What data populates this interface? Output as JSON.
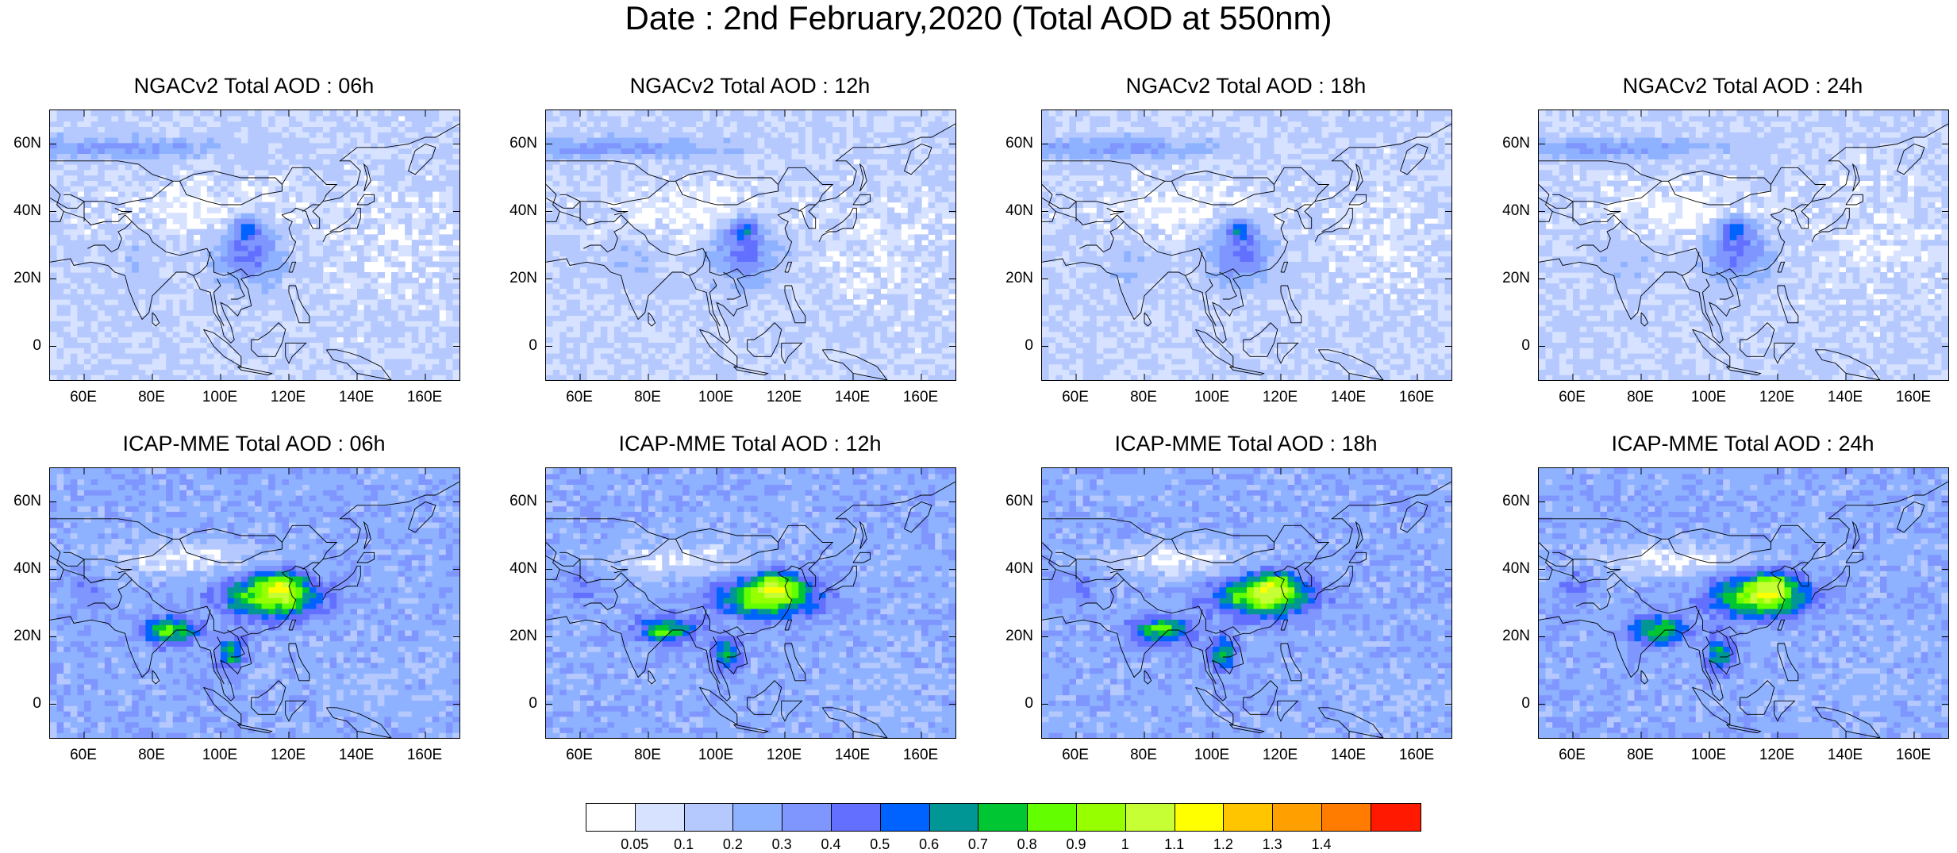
{
  "title": "Date : 2nd February,2020 (Total AOD at 550nm)",
  "panels": [
    {
      "title": "NGACv2 Total AOD : 06h",
      "model": "ngac"
    },
    {
      "title": "NGACv2 Total AOD : 12h",
      "model": "ngac"
    },
    {
      "title": "NGACv2 Total AOD : 18h",
      "model": "ngac"
    },
    {
      "title": "NGACv2 Total AOD : 24h",
      "model": "ngac"
    },
    {
      "title": "ICAP-MME Total AOD : 06h",
      "model": "icap"
    },
    {
      "title": "ICAP-MME Total AOD : 12h",
      "model": "icap"
    },
    {
      "title": "ICAP-MME Total AOD : 18h",
      "model": "icap"
    },
    {
      "title": "ICAP-MME Total AOD : 24h",
      "model": "icap"
    }
  ],
  "map": {
    "lon_range": [
      50,
      170
    ],
    "lat_range": [
      -10,
      70
    ],
    "lat_ticks": [
      {
        "value": 60,
        "label": "60N"
      },
      {
        "value": 40,
        "label": "40N"
      },
      {
        "value": 20,
        "label": "20N"
      },
      {
        "value": 0,
        "label": "0"
      }
    ],
    "lon_ticks": [
      {
        "value": 60,
        "label": "60E"
      },
      {
        "value": 80,
        "label": "80E"
      },
      {
        "value": 100,
        "label": "100E"
      },
      {
        "value": 120,
        "label": "120E"
      },
      {
        "value": 140,
        "label": "140E"
      },
      {
        "value": 160,
        "label": "160E"
      }
    ]
  },
  "colorbar": {
    "colors": [
      "#ffffff",
      "#d6e2ff",
      "#b5c9ff",
      "#8eb2ff",
      "#7f96ff",
      "#6370ff",
      "#0063ff",
      "#009696",
      "#00c633",
      "#63ff00",
      "#96ff00",
      "#c6ff33",
      "#ffff00",
      "#ffc600",
      "#ffa000",
      "#ff7c00",
      "#ff1900"
    ],
    "labels": [
      "0.05",
      "0.1",
      "0.2",
      "0.3",
      "0.4",
      "0.5",
      "0.6",
      "0.7",
      "0.8",
      "0.9",
      "1",
      "1.1",
      "1.2",
      "1.3",
      "1.4"
    ]
  }
}
